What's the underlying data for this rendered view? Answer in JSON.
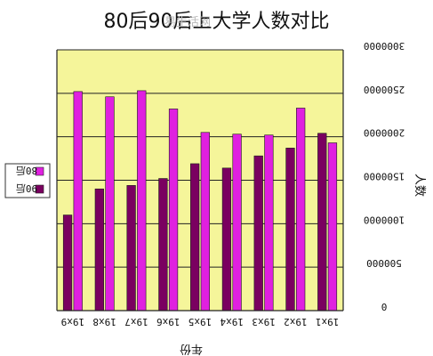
{
  "title": "80后90后上大学人数对比",
  "watermark": "易生活网",
  "chart_data": {
    "type": "bar",
    "orientation": "mirrored",
    "categories": [
      "19x9",
      "19x8",
      "19x7",
      "19x6",
      "19x5",
      "19x4",
      "19x3",
      "19x2",
      "19x1"
    ],
    "series": [
      {
        "name": "80后",
        "values": [
          2520000,
          2460000,
          2530000,
          2320000,
          2050000,
          2030000,
          2020000,
          2330000,
          1930000
        ]
      },
      {
        "name": "90后",
        "values": [
          1100000,
          1400000,
          1440000,
          1520000,
          1690000,
          1640000,
          1780000,
          1870000,
          2040000
        ]
      }
    ],
    "ylim": [
      0,
      3000000
    ],
    "yticks": [
      "0",
      "500000",
      "1000000",
      "1500000",
      "2000000",
      "2500000",
      "3000000"
    ],
    "ylabel": "人数",
    "xlabel": "年份",
    "grid": true,
    "legend_position": "left",
    "colors": {
      "80后": "#e020e0",
      "90后": "#7a0060",
      "plot_bg": "#f5f59a",
      "grid": "#222222"
    }
  }
}
